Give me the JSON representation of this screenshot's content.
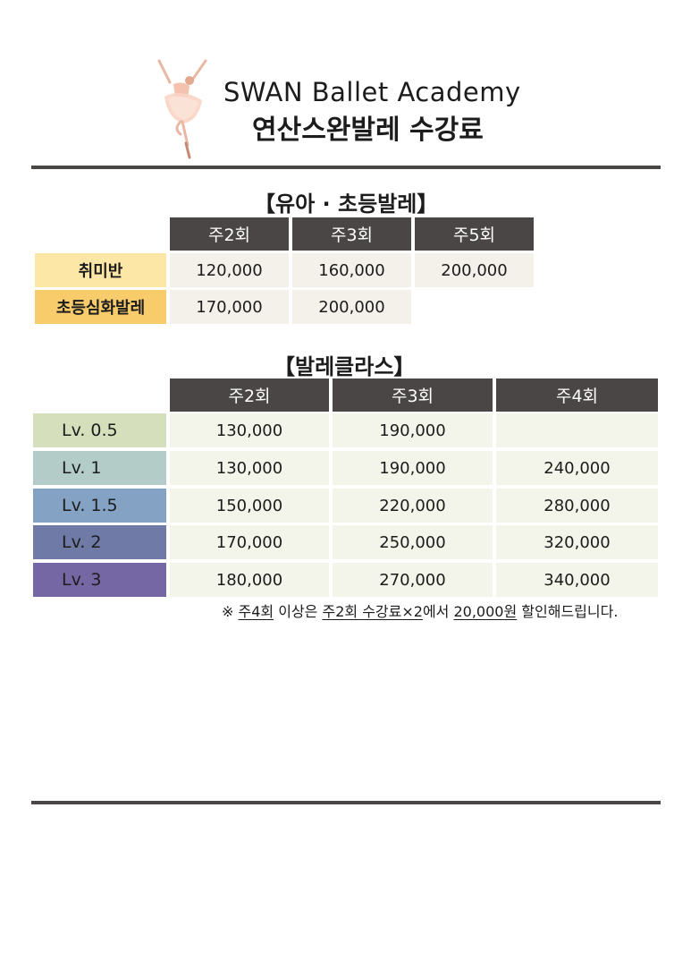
{
  "header": {
    "title_en": "SWAN Ballet Academy",
    "title_ko": "연산스완발레 수강료"
  },
  "kids": {
    "title": "【유아 · 초등발레】",
    "columns": [
      "주2회",
      "주3회",
      "주5회"
    ],
    "rows": [
      {
        "label": "취미반",
        "color": "#fde7a6",
        "values": [
          "120,000",
          "160,000",
          "200,000"
        ]
      },
      {
        "label": "초등심화발레",
        "color": "#f9cc6b",
        "values": [
          "170,000",
          "200,000",
          ""
        ]
      }
    ]
  },
  "ballet": {
    "title": "【발레클라스】",
    "columns": [
      "주2회",
      "주3회",
      "주4회"
    ],
    "rows": [
      {
        "label": "Lv. 0.5",
        "color": "#d6dfbc",
        "values": [
          "130,000",
          "190,000",
          ""
        ]
      },
      {
        "label": "Lv. 1",
        "color": "#b3ccc7",
        "values": [
          "130,000",
          "190,000",
          "240,000"
        ]
      },
      {
        "label": "Lv. 1.5",
        "color": "#84a2c3",
        "values": [
          "150,000",
          "220,000",
          "280,000"
        ]
      },
      {
        "label": "Lv. 2",
        "color": "#6f7ba6",
        "values": [
          "170,000",
          "250,000",
          "320,000"
        ]
      },
      {
        "label": "Lv. 3",
        "color": "#7567a4",
        "values": [
          "180,000",
          "270,000",
          "340,000"
        ]
      }
    ]
  },
  "note": {
    "mark": "※",
    "part1": "주4회",
    "part2": "이상은",
    "part3": "주2회 수강료×2",
    "part4": "에서",
    "part5": "20,000원",
    "part6": "할인해드립니다."
  },
  "colors": {
    "header_bg": "#4a4646",
    "rule": "#4a4646",
    "cell_bg_kids": "#f4f1ea",
    "cell_bg_ballet": "#f3f4ea"
  }
}
